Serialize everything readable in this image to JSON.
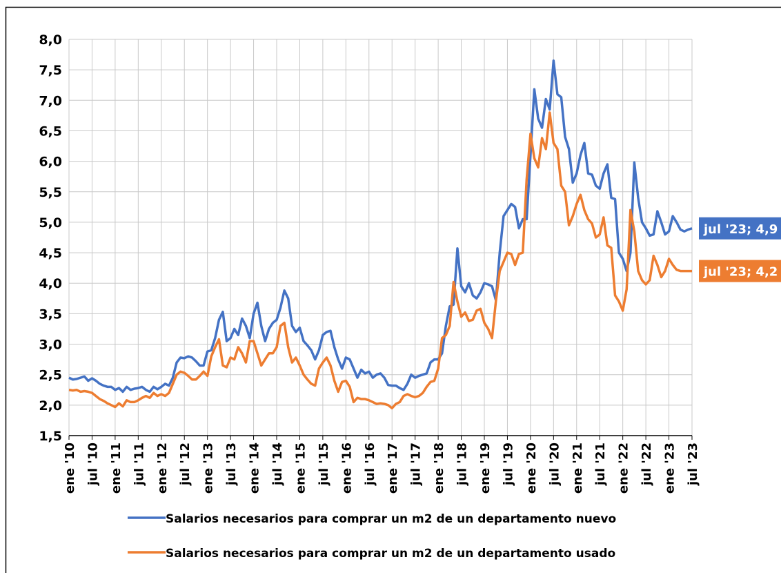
{
  "chart_data": {
    "type": "line",
    "categories": [
      "ene '10",
      null,
      null,
      null,
      null,
      null,
      "jul '10",
      null,
      null,
      null,
      null,
      null,
      "ene '11",
      null,
      null,
      null,
      null,
      null,
      "jul '11",
      null,
      null,
      null,
      null,
      null,
      "ene '12",
      null,
      null,
      null,
      null,
      null,
      "jul '12",
      null,
      null,
      null,
      null,
      null,
      "ene '13",
      null,
      null,
      null,
      null,
      null,
      "jul '13",
      null,
      null,
      null,
      null,
      null,
      "ene '14",
      null,
      null,
      null,
      null,
      null,
      "jul '14",
      null,
      null,
      null,
      null,
      null,
      "ene '15",
      null,
      null,
      null,
      null,
      null,
      "jul '15",
      null,
      null,
      null,
      null,
      null,
      "ene '16",
      null,
      null,
      null,
      null,
      null,
      "jul '16",
      null,
      null,
      null,
      null,
      null,
      "ene '17",
      null,
      null,
      null,
      null,
      null,
      "jul '17",
      null,
      null,
      null,
      null,
      null,
      "ene '18",
      null,
      null,
      null,
      null,
      null,
      "jul '18",
      null,
      null,
      null,
      null,
      null,
      "ene '19",
      null,
      null,
      null,
      null,
      null,
      "jul '19",
      null,
      null,
      null,
      null,
      null,
      "ene '20",
      null,
      null,
      null,
      null,
      null,
      "jul '20",
      null,
      null,
      null,
      null,
      null,
      "ene '21",
      null,
      null,
      null,
      null,
      null,
      "jul '21",
      null,
      null,
      null,
      null,
      null,
      "ene '22",
      null,
      null,
      null,
      null,
      null,
      "jul '22",
      null,
      null,
      null,
      null,
      null,
      "ene '23",
      null,
      null,
      null,
      null,
      null,
      "jul '23"
    ],
    "series": [
      {
        "name": "Salarios necesarios para comprar un m2 de un departamento nuevo",
        "color": "#4472c4",
        "end_label": "jul '23; 4,9",
        "values": [
          2.45,
          2.42,
          2.43,
          2.45,
          2.47,
          2.4,
          2.44,
          2.4,
          2.35,
          2.32,
          2.3,
          2.3,
          2.25,
          2.28,
          2.22,
          2.3,
          2.25,
          2.27,
          2.28,
          2.3,
          2.25,
          2.22,
          2.3,
          2.26,
          2.3,
          2.35,
          2.32,
          2.45,
          2.7,
          2.78,
          2.77,
          2.8,
          2.78,
          2.72,
          2.65,
          2.65,
          2.88,
          2.9,
          3.1,
          3.4,
          3.53,
          3.05,
          3.1,
          3.25,
          3.15,
          3.42,
          3.3,
          3.1,
          3.5,
          3.68,
          3.3,
          3.05,
          3.25,
          3.35,
          3.4,
          3.6,
          3.88,
          3.75,
          3.3,
          3.2,
          3.27,
          3.05,
          2.98,
          2.9,
          2.75,
          2.9,
          3.15,
          3.2,
          3.22,
          2.95,
          2.75,
          2.6,
          2.78,
          2.75,
          2.6,
          2.45,
          2.58,
          2.52,
          2.55,
          2.45,
          2.5,
          2.52,
          2.45,
          2.33,
          2.32,
          2.32,
          2.28,
          2.25,
          2.35,
          2.5,
          2.45,
          2.48,
          2.5,
          2.52,
          2.7,
          2.75,
          2.75,
          2.85,
          3.3,
          3.62,
          3.65,
          4.57,
          3.95,
          3.85,
          4.0,
          3.8,
          3.75,
          3.85,
          4.0,
          3.98,
          3.95,
          3.72,
          4.5,
          5.1,
          5.2,
          5.3,
          5.25,
          4.9,
          5.05,
          5.05,
          6.1,
          7.18,
          6.7,
          6.55,
          7.02,
          6.85,
          7.65,
          7.1,
          7.05,
          6.4,
          6.2,
          5.65,
          5.8,
          6.1,
          6.3,
          5.8,
          5.78,
          5.6,
          5.55,
          5.8,
          5.95,
          5.4,
          5.38,
          4.5,
          4.4,
          4.2,
          4.5,
          5.98,
          5.4,
          5.0,
          4.9,
          4.78,
          4.8,
          5.18,
          5.0,
          4.8,
          4.85,
          5.1,
          5.0,
          4.88,
          4.85,
          4.88,
          4.9
        ]
      },
      {
        "name": "Salarios necesarios para comprar un m2 de un departamento usado",
        "color": "#ed7d31",
        "end_label": "jul '23; 4,2",
        "values": [
          2.25,
          2.24,
          2.25,
          2.22,
          2.23,
          2.22,
          2.2,
          2.15,
          2.1,
          2.07,
          2.03,
          2.0,
          1.97,
          2.03,
          1.98,
          2.08,
          2.05,
          2.05,
          2.08,
          2.12,
          2.15,
          2.12,
          2.2,
          2.15,
          2.18,
          2.15,
          2.2,
          2.35,
          2.5,
          2.55,
          2.53,
          2.48,
          2.42,
          2.42,
          2.48,
          2.55,
          2.48,
          2.8,
          2.95,
          3.08,
          2.65,
          2.62,
          2.78,
          2.75,
          2.95,
          2.85,
          2.7,
          3.05,
          3.05,
          2.85,
          2.65,
          2.75,
          2.85,
          2.85,
          2.95,
          3.3,
          3.35,
          2.95,
          2.7,
          2.78,
          2.65,
          2.5,
          2.42,
          2.35,
          2.32,
          2.6,
          2.7,
          2.78,
          2.65,
          2.4,
          2.22,
          2.38,
          2.4,
          2.3,
          2.05,
          2.12,
          2.1,
          2.1,
          2.08,
          2.05,
          2.02,
          2.03,
          2.02,
          2.0,
          1.95,
          2.02,
          2.05,
          2.15,
          2.18,
          2.15,
          2.13,
          2.15,
          2.2,
          2.3,
          2.38,
          2.4,
          2.6,
          3.1,
          3.15,
          3.3,
          4.02,
          3.7,
          3.45,
          3.52,
          3.38,
          3.4,
          3.55,
          3.58,
          3.35,
          3.25,
          3.1,
          3.7,
          4.2,
          4.35,
          4.5,
          4.48,
          4.3,
          4.48,
          4.5,
          5.7,
          6.45,
          6.05,
          5.9,
          6.38,
          6.2,
          6.8,
          6.3,
          6.2,
          5.6,
          5.5,
          4.95,
          5.1,
          5.3,
          5.45,
          5.2,
          5.05,
          4.98,
          4.75,
          4.8,
          5.08,
          4.62,
          4.58,
          3.8,
          3.7,
          3.55,
          3.9,
          5.2,
          4.85,
          4.2,
          4.05,
          3.98,
          4.05,
          4.45,
          4.3,
          4.1,
          4.2,
          4.4,
          4.3,
          4.22,
          4.2,
          4.2,
          4.2,
          4.2
        ]
      }
    ],
    "ylim": [
      1.5,
      8
    ],
    "yticks": [
      {
        "value": 1.5,
        "label": "1,5"
      },
      {
        "value": 2,
        "label": "2,0"
      },
      {
        "value": 2.5,
        "label": "2,5"
      },
      {
        "value": 3,
        "label": "3,0"
      },
      {
        "value": 3.5,
        "label": "3,5"
      },
      {
        "value": 4,
        "label": "4,0"
      },
      {
        "value": 4.5,
        "label": "4,5"
      },
      {
        "value": 5,
        "label": "5,0"
      },
      {
        "value": 5.5,
        "label": "5,5"
      },
      {
        "value": 6,
        "label": "6,0"
      },
      {
        "value": 6.5,
        "label": "6,5"
      },
      {
        "value": 7,
        "label": "7,0"
      },
      {
        "value": 7.5,
        "label": "7,5"
      },
      {
        "value": 8,
        "label": "8,0"
      }
    ],
    "grid": true,
    "legend": "bottom"
  }
}
